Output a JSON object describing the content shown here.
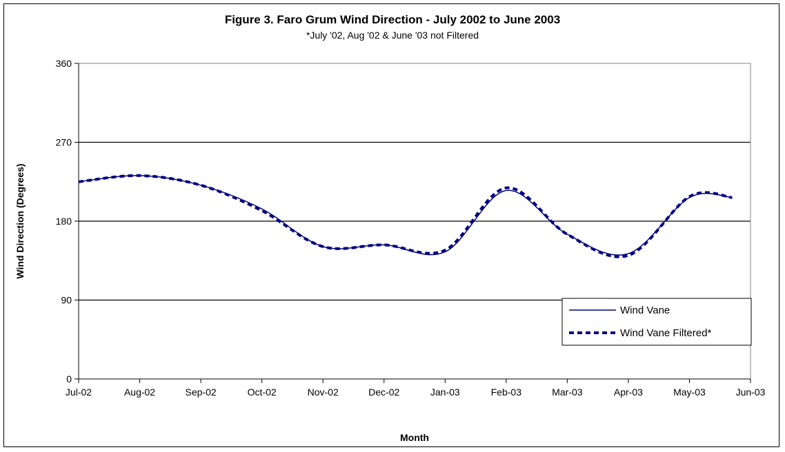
{
  "chart_data": {
    "type": "line",
    "title": "Figure 3.  Faro Grum Wind Direction - July 2002 to June 2003",
    "subtitle": "*July '02, Aug '02 & June '03 not Filtered",
    "xlabel": "Month",
    "ylabel": "Wind Direction (Degrees)",
    "ylim": [
      0,
      360
    ],
    "yticks": [
      0,
      90,
      180,
      270,
      360
    ],
    "grid": "horizontal",
    "legend_position": "bottom-right",
    "categories": [
      "Jul-02",
      "Aug-02",
      "Sep-02",
      "Oct-02",
      "Nov-02",
      "Dec-02",
      "Jan-03",
      "Feb-03",
      "Mar-03",
      "Apr-03",
      "May-03",
      "Jun-03"
    ],
    "series": [
      {
        "name": "Wind Vane",
        "color": "#000080",
        "style": "solid",
        "x": [
          0,
          1,
          2,
          3,
          4,
          5,
          6,
          7,
          8,
          9,
          10,
          10.7
        ],
        "values": [
          225,
          232,
          221,
          194,
          151,
          153,
          145,
          215,
          165,
          143,
          207,
          207
        ]
      },
      {
        "name": "Wind Vane Filtered*",
        "color": "#000080",
        "style": "dashed",
        "x": [
          0,
          1,
          2,
          3,
          4,
          5,
          6,
          7,
          8,
          9,
          10,
          10.7
        ],
        "values": [
          225,
          232,
          221,
          192,
          151,
          153,
          147,
          218,
          165,
          141,
          208,
          207
        ]
      }
    ]
  }
}
